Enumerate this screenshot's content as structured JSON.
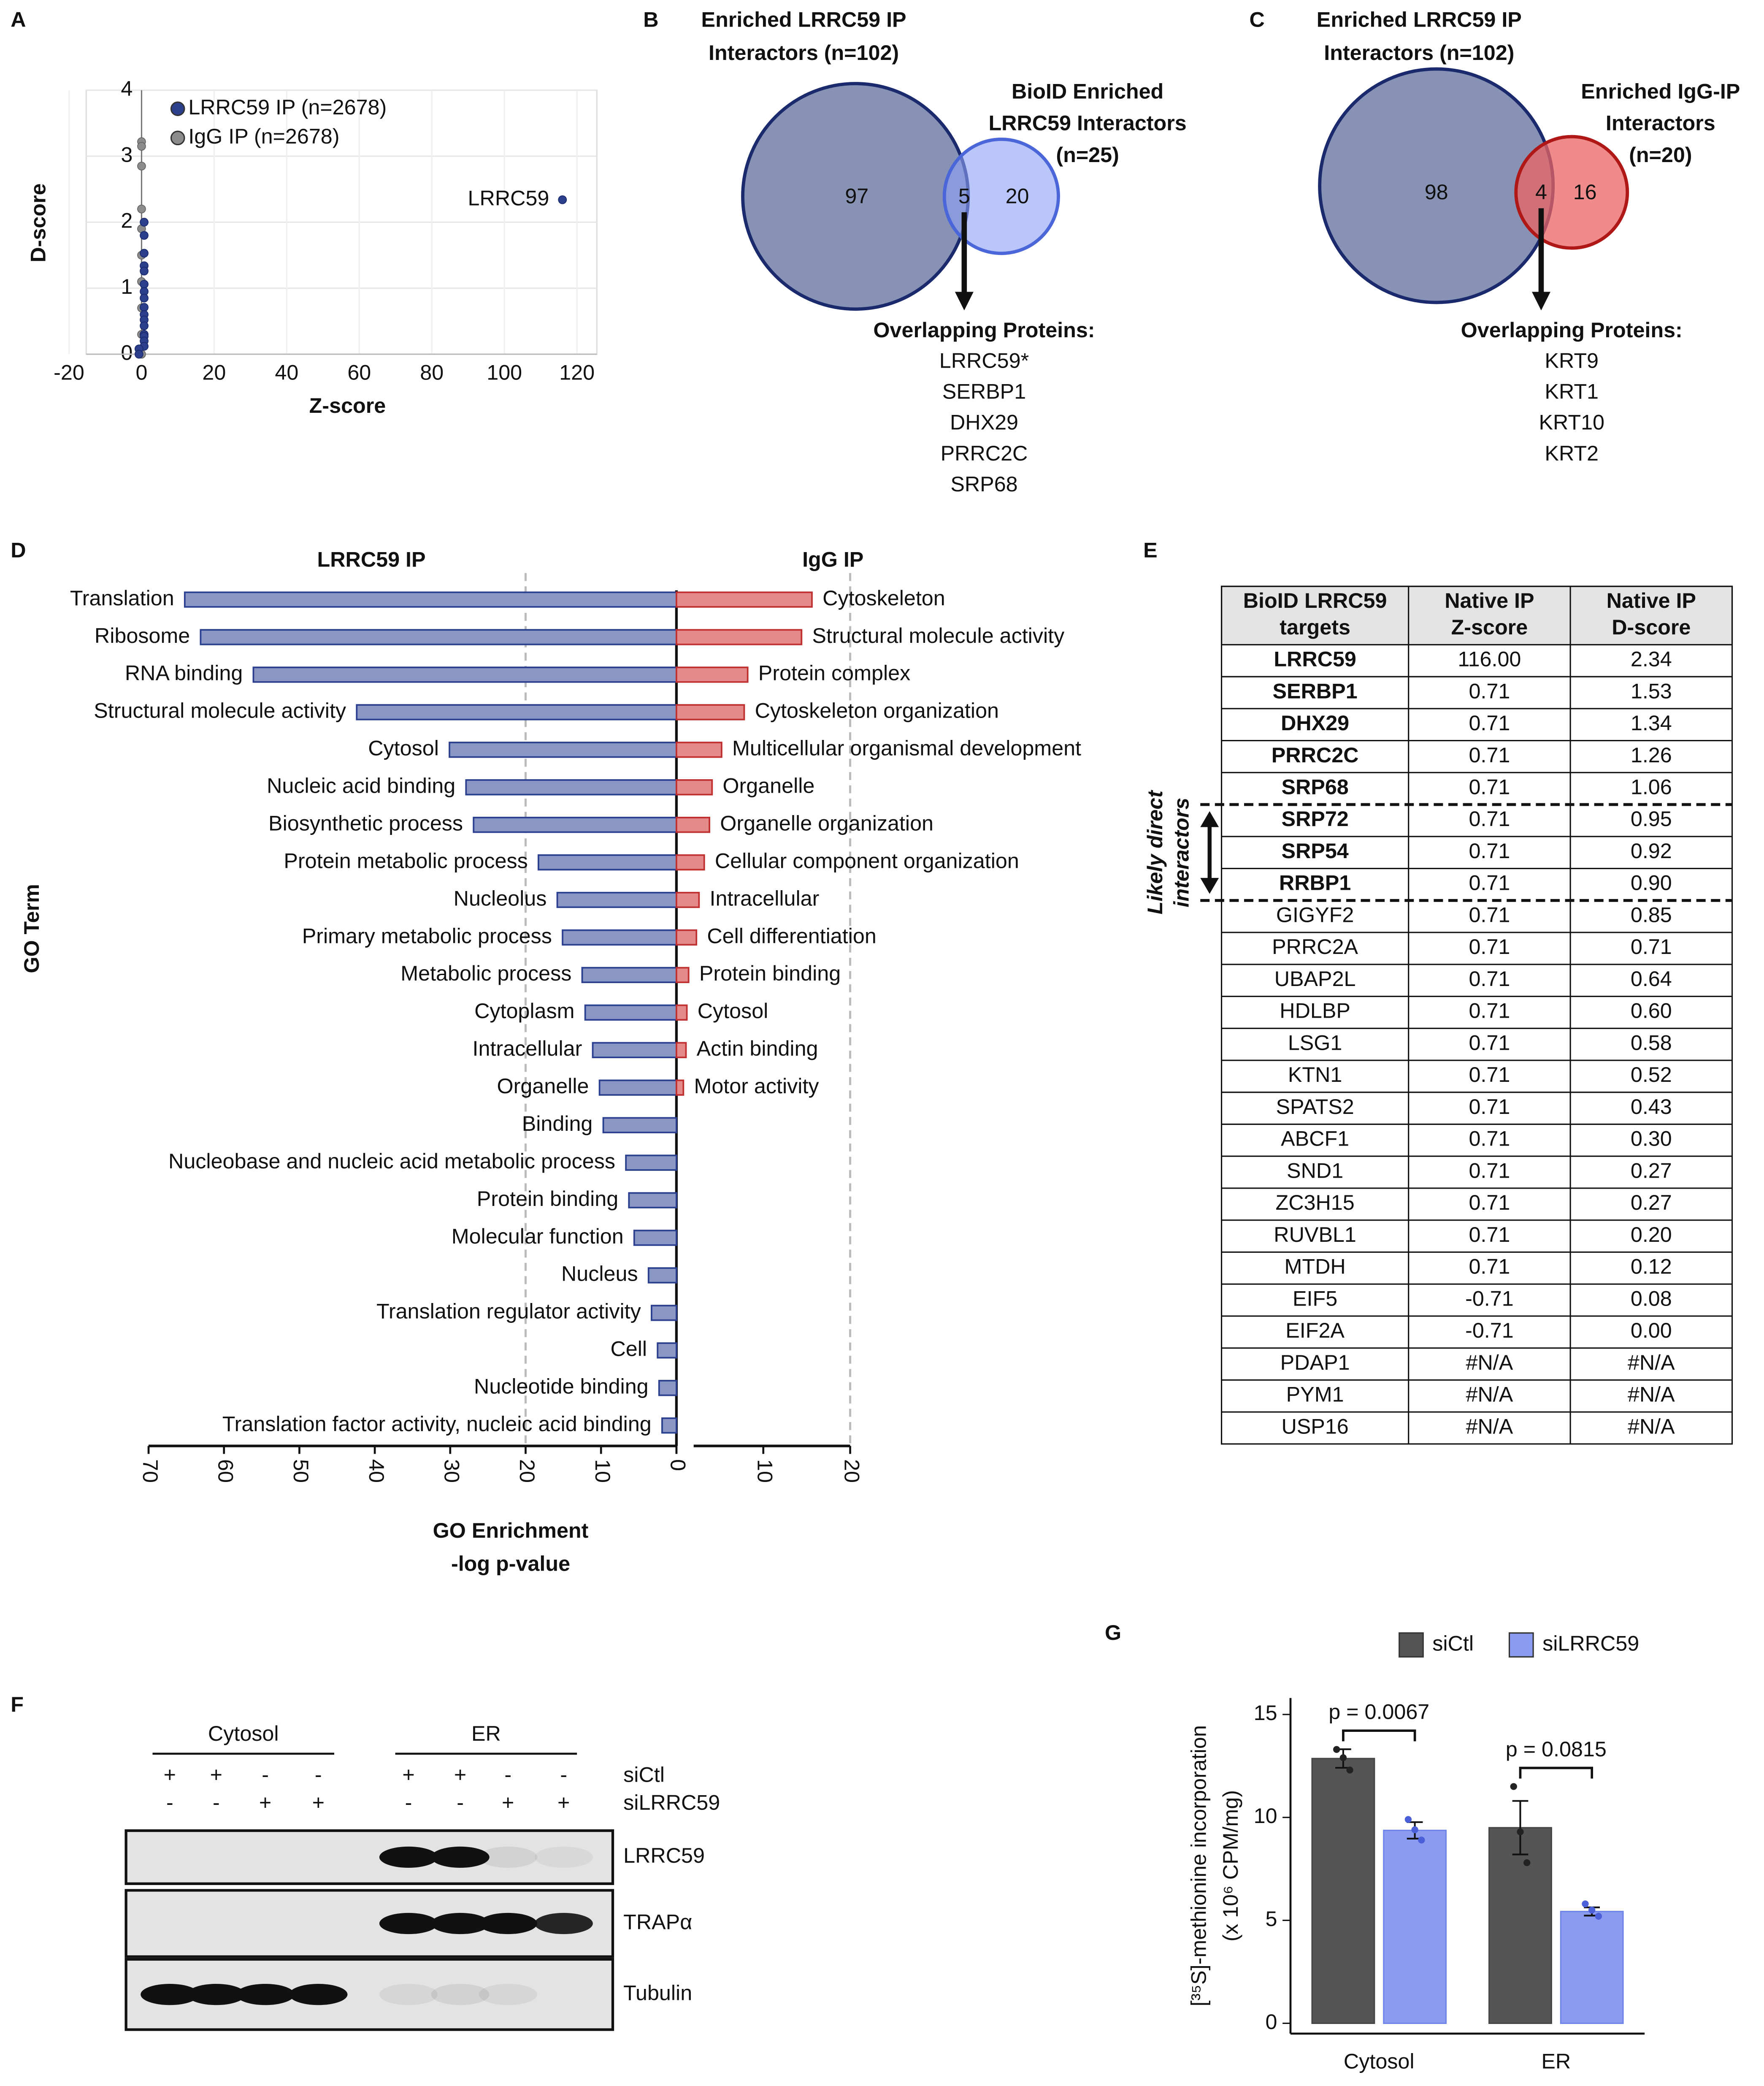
{
  "chart_data": [
    {
      "type": "scatter",
      "panel": "A",
      "x_label": "Z-score",
      "y_label": "D-score",
      "xlim": [
        -20,
        120
      ],
      "ylim": [
        0,
        4
      ],
      "xticks": [
        -20,
        0,
        20,
        40,
        60,
        80,
        100,
        120
      ],
      "yticks": [
        0,
        1,
        2,
        3,
        4
      ],
      "grid": true,
      "legend": "upper left",
      "series": [
        {
          "name": "LRRC59 IP (n=2678)",
          "color": "#2b3f8c",
          "x": [
            116,
            0.71,
            0.71,
            0.71,
            0.71,
            0.71,
            0.71,
            0.71,
            0.71,
            0.71,
            0.71,
            0.71,
            0.71,
            0.71,
            0.71,
            0.71,
            0.71,
            -0.71,
            -0.71
          ],
          "y": [
            2.34,
            2.0,
            1.8,
            1.53,
            1.34,
            1.26,
            1.06,
            0.95,
            0.85,
            0.71,
            0.6,
            0.52,
            0.43,
            0.3,
            0.27,
            0.2,
            0.12,
            0.08,
            0.0
          ]
        },
        {
          "name": "IgG IP (n=2678)",
          "color": "#8c8c8c",
          "x": [
            0,
            0,
            0,
            0,
            0,
            0,
            0,
            0,
            0,
            0
          ],
          "y": [
            3.22,
            3.15,
            2.85,
            2.2,
            1.9,
            1.5,
            1.1,
            0.7,
            0.3,
            0.0
          ]
        }
      ],
      "annotation": "LRRC59",
      "annotation_color": "#d42020"
    },
    {
      "type": "bar",
      "orientation": "horizontal",
      "panel": "D",
      "title": "LRRC59 IP",
      "title_color": "#1a2a6c",
      "color": "#8a97c4",
      "edge_color": "#2a3f8f",
      "y_label": "GO Term",
      "x_label": [
        "GO Enrichment",
        "-log p-value"
      ],
      "categories": [
        "Translation",
        "Ribosome",
        "RNA binding",
        "Structural molecule activity",
        "Cytosol",
        "Nucleic acid binding",
        "Biosynthetic process",
        "Protein metabolic process",
        "Nucleolus",
        "Primary metabolic process",
        "Metabolic process",
        "Cytoplasm",
        "Intracellular",
        "Organelle",
        "Binding",
        "Nucleobase and nucleic acid metabolic process",
        "Protein binding",
        "Molecular function",
        "Nucleus",
        "Translation regulator activity",
        "Cell",
        "Nucleotide binding",
        "Translation factor activity, nucleic acid binding"
      ],
      "values": [
        65.2,
        63.1,
        56.1,
        42.4,
        30.1,
        27.9,
        26.9,
        18.3,
        15.8,
        15.1,
        12.5,
        12.1,
        11.1,
        10.2,
        9.7,
        6.7,
        6.3,
        5.6,
        3.7,
        3.3,
        2.5,
        2.3,
        1.9
      ],
      "xlim": [
        70,
        0
      ],
      "xticks": [
        70,
        60,
        50,
        40,
        30,
        20,
        10,
        0
      ],
      "reference_lines": [
        20
      ]
    },
    {
      "type": "bar",
      "orientation": "horizontal",
      "panel": "D",
      "title": "IgG IP",
      "title_color": "#a01818",
      "color": "#e58a8a",
      "edge_color": "#c03030",
      "categories": [
        "Cytoskeleton",
        "Structural molecule activity",
        "Protein complex",
        "Cytoskeleton organization",
        "Multicellular organismal development",
        "Organelle",
        "Organelle organization",
        "Cellular component organization",
        "Intracellular",
        "Cell differentiation",
        "Protein binding",
        "Cytosol",
        "Actin binding",
        "Motor activity"
      ],
      "values": [
        15.6,
        14.4,
        8.2,
        7.8,
        5.2,
        4.1,
        3.8,
        3.2,
        2.6,
        2.3,
        1.4,
        1.2,
        1.1,
        0.8
      ],
      "xlim": [
        0,
        20
      ],
      "xticks": [
        0,
        10,
        20
      ],
      "reference_lines": [
        20
      ]
    },
    {
      "type": "bar",
      "orientation": "vertical",
      "panel": "G",
      "categories": [
        "Cytosol",
        "ER"
      ],
      "ylim": [
        -0.5,
        15.8
      ],
      "yticks": [
        0,
        5,
        10,
        15
      ],
      "y_label": [
        "[³⁵S]-methionine incorporation",
        "(x 10⁶ CPM/mg)"
      ],
      "legend": "top",
      "series": [
        {
          "name": "siCtl",
          "color": "#555555",
          "point_color": "#222222",
          "values": [
            12.86,
            9.5
          ],
          "errors": [
            0.45,
            1.3
          ],
          "points": [
            [
              13.3,
              12.9,
              12.3
            ],
            [
              11.5,
              9.3,
              7.8
            ]
          ]
        },
        {
          "name": "siLRRC59",
          "color": "#8b9cf0",
          "point_color": "#4a5fd8",
          "values": [
            9.37,
            5.43
          ],
          "errors": [
            0.4,
            0.2
          ],
          "points": [
            [
              9.9,
              9.4,
              8.9
            ],
            [
              5.8,
              5.5,
              5.2
            ]
          ]
        }
      ],
      "annotations": [
        "p = 0.0067",
        "p = 0.0815"
      ]
    }
  ],
  "venn_b": {
    "panel": "B",
    "left_label": [
      "Enriched LRRC59 IP",
      "Interactors (n=102)"
    ],
    "left_color": "#1a2a6c",
    "left_fill": "#8792b4",
    "right_label": [
      "BioID Enriched",
      "LRRC59 Interactors",
      "(n=25)"
    ],
    "right_color": "#4a66d8",
    "right_fill": "rgba(140,160,245,0.6)",
    "counts": [
      97,
      5,
      20
    ],
    "overlap_title": "Overlapping Proteins:",
    "overlap": [
      "LRRC59*",
      "SERBP1",
      "DHX29",
      "PRRC2C",
      "SRP68"
    ]
  },
  "venn_c": {
    "panel": "C",
    "left_label": [
      "Enriched LRRC59 IP",
      "Interactors (n=102)"
    ],
    "left_color": "#1a2a6c",
    "left_fill": "#8792b4",
    "right_label": [
      "Enriched IgG-IP",
      "Interactors",
      "(n=20)"
    ],
    "right_color": "#b01818",
    "right_fill": "rgba(235,100,100,0.75)",
    "counts": [
      98,
      4,
      16
    ],
    "overlap_title": "Overlapping Proteins:",
    "overlap": [
      "KRT9",
      "KRT1",
      "KRT10",
      "KRT2"
    ]
  },
  "table_e": {
    "panel": "E",
    "header": [
      [
        "BioID LRRC59",
        "targets"
      ],
      [
        "Native IP",
        "Z-score"
      ],
      [
        "Native IP",
        "D-score"
      ]
    ],
    "side_label": [
      "Likely direct",
      "interactors"
    ],
    "rows": [
      [
        "LRRC59",
        "116.00",
        "2.34"
      ],
      [
        "SERBP1",
        "0.71",
        "1.53"
      ],
      [
        "DHX29",
        "0.71",
        "1.34"
      ],
      [
        "PRRC2C",
        "0.71",
        "1.26"
      ],
      [
        "SRP68",
        "0.71",
        "1.06"
      ],
      [
        "SRP72",
        "0.71",
        "0.95"
      ],
      [
        "SRP54",
        "0.71",
        "0.92"
      ],
      [
        "RRBP1",
        "0.71",
        "0.90"
      ],
      [
        "GIGYF2",
        "0.71",
        "0.85"
      ],
      [
        "PRRC2A",
        "0.71",
        "0.71"
      ],
      [
        "UBAP2L",
        "0.71",
        "0.64"
      ],
      [
        "HDLBP",
        "0.71",
        "0.60"
      ],
      [
        "LSG1",
        "0.71",
        "0.58"
      ],
      [
        "KTN1",
        "0.71",
        "0.52"
      ],
      [
        "SPATS2",
        "0.71",
        "0.43"
      ],
      [
        "ABCF1",
        "0.71",
        "0.30"
      ],
      [
        "SND1",
        "0.71",
        "0.27"
      ],
      [
        "ZC3H15",
        "0.71",
        "0.27"
      ],
      [
        "RUVBL1",
        "0.71",
        "0.20"
      ],
      [
        "MTDH",
        "0.71",
        "0.12"
      ],
      [
        "EIF5",
        "-0.71",
        "0.08"
      ],
      [
        "EIF2A",
        "-0.71",
        "0.00"
      ],
      [
        "PDAP1",
        "#N/A",
        "#N/A"
      ],
      [
        "PYM1",
        "#N/A",
        "#N/A"
      ],
      [
        "USP16",
        "#N/A",
        "#N/A"
      ]
    ]
  },
  "blot_f": {
    "panel": "F",
    "groups": [
      "Cytosol",
      "ER"
    ],
    "conditions": [
      "siCtl",
      "siLRRC59"
    ],
    "signs": [
      [
        "+",
        "+",
        "-",
        "-",
        "+",
        "+",
        "-",
        "-"
      ],
      [
        "-",
        "-",
        "+",
        "+",
        "-",
        "-",
        "+",
        "+"
      ]
    ],
    "rows": [
      "LRRC59",
      "TRAPα",
      "Tubulin"
    ]
  }
}
